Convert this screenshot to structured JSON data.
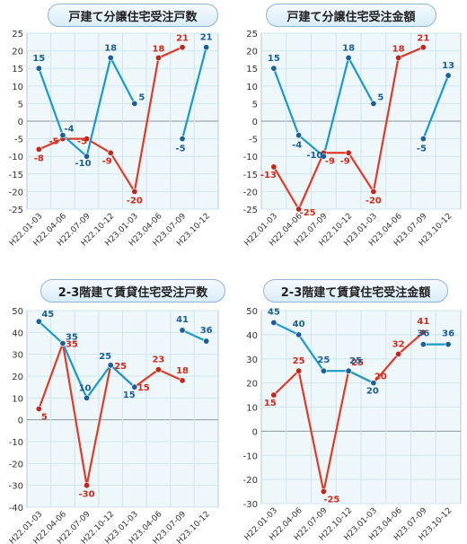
{
  "colors": {
    "series_a": "#e03a2a",
    "series_b": "#1b9ac7",
    "plot_bg": "#eef7fa",
    "grid": "#cfe6ee"
  },
  "chart_data": [
    {
      "type": "line",
      "title": "戸建て分譲住宅受注戸数",
      "categories": [
        "H22.01-03",
        "H22.04-06",
        "H22.07-09",
        "H22.10-12",
        "H23.01-03",
        "H23.04-06",
        "H23.07-09",
        "H23.10-12"
      ],
      "ylim": [
        -25,
        25
      ],
      "yticks": [
        -25,
        -20,
        -15,
        -10,
        -5,
        0,
        5,
        10,
        15,
        20,
        25
      ],
      "grid": true,
      "series": [
        {
          "color": "#e03a2a",
          "values": [
            -8,
            -5,
            -5,
            -9,
            -20,
            18,
            21,
            null
          ]
        },
        {
          "color": "#1b9ac7",
          "values": [
            15,
            -4,
            -10,
            18,
            5,
            null,
            -5,
            21
          ]
        }
      ]
    },
    {
      "type": "line",
      "title": "戸建て分譲住宅受注金額",
      "categories": [
        "H22.01-03",
        "H22.04-06",
        "H22.07-09",
        "H22.10-12",
        "H23.01-03",
        "H23.04-06",
        "H23.07-09",
        "H23.10-12"
      ],
      "ylim": [
        -25,
        25
      ],
      "yticks": [
        -25,
        -20,
        -15,
        -10,
        -5,
        0,
        5,
        10,
        15,
        20,
        25
      ],
      "grid": true,
      "series": [
        {
          "color": "#e03a2a",
          "values": [
            -13,
            -25,
            -9,
            -9,
            -20,
            18,
            21,
            null
          ]
        },
        {
          "color": "#1b9ac7",
          "values": [
            15,
            -4,
            -10,
            18,
            5,
            null,
            -5,
            13
          ]
        }
      ]
    },
    {
      "type": "line",
      "title": "2-3階建て賃貸住宅受注戸数",
      "categories": [
        "H22.01-03",
        "H22.04-06",
        "H22.07-09",
        "H22.10-12",
        "H23.01-03",
        "H23.04-06",
        "H23.07-09",
        "H23.10-12"
      ],
      "ylim": [
        -40,
        50
      ],
      "yticks": [
        -40,
        -30,
        -20,
        -10,
        0,
        10,
        20,
        30,
        40,
        50
      ],
      "grid": true,
      "series": [
        {
          "color": "#e03a2a",
          "values": [
            5,
            35,
            -30,
            25,
            15,
            23,
            18,
            null
          ]
        },
        {
          "color": "#1b9ac7",
          "values": [
            45,
            35,
            10,
            25,
            15,
            null,
            41,
            36
          ]
        }
      ]
    },
    {
      "type": "line",
      "title": "2-3階建て賃貸住宅受注金額",
      "categories": [
        "H22.01-03",
        "H22.04-06",
        "H22.07-09",
        "H22.10-12",
        "H23.01-03",
        "H23.04-06",
        "H23.07-09",
        "H23.10-12"
      ],
      "ylim": [
        -30,
        50
      ],
      "yticks": [
        -30,
        -20,
        -10,
        0,
        10,
        20,
        30,
        40,
        50
      ],
      "grid": true,
      "series": [
        {
          "color": "#e03a2a",
          "values": [
            15,
            25,
            -25,
            25,
            20,
            32,
            41,
            null
          ]
        },
        {
          "color": "#1b9ac7",
          "values": [
            45,
            40,
            25,
            25,
            20,
            null,
            36,
            36
          ]
        }
      ]
    }
  ]
}
